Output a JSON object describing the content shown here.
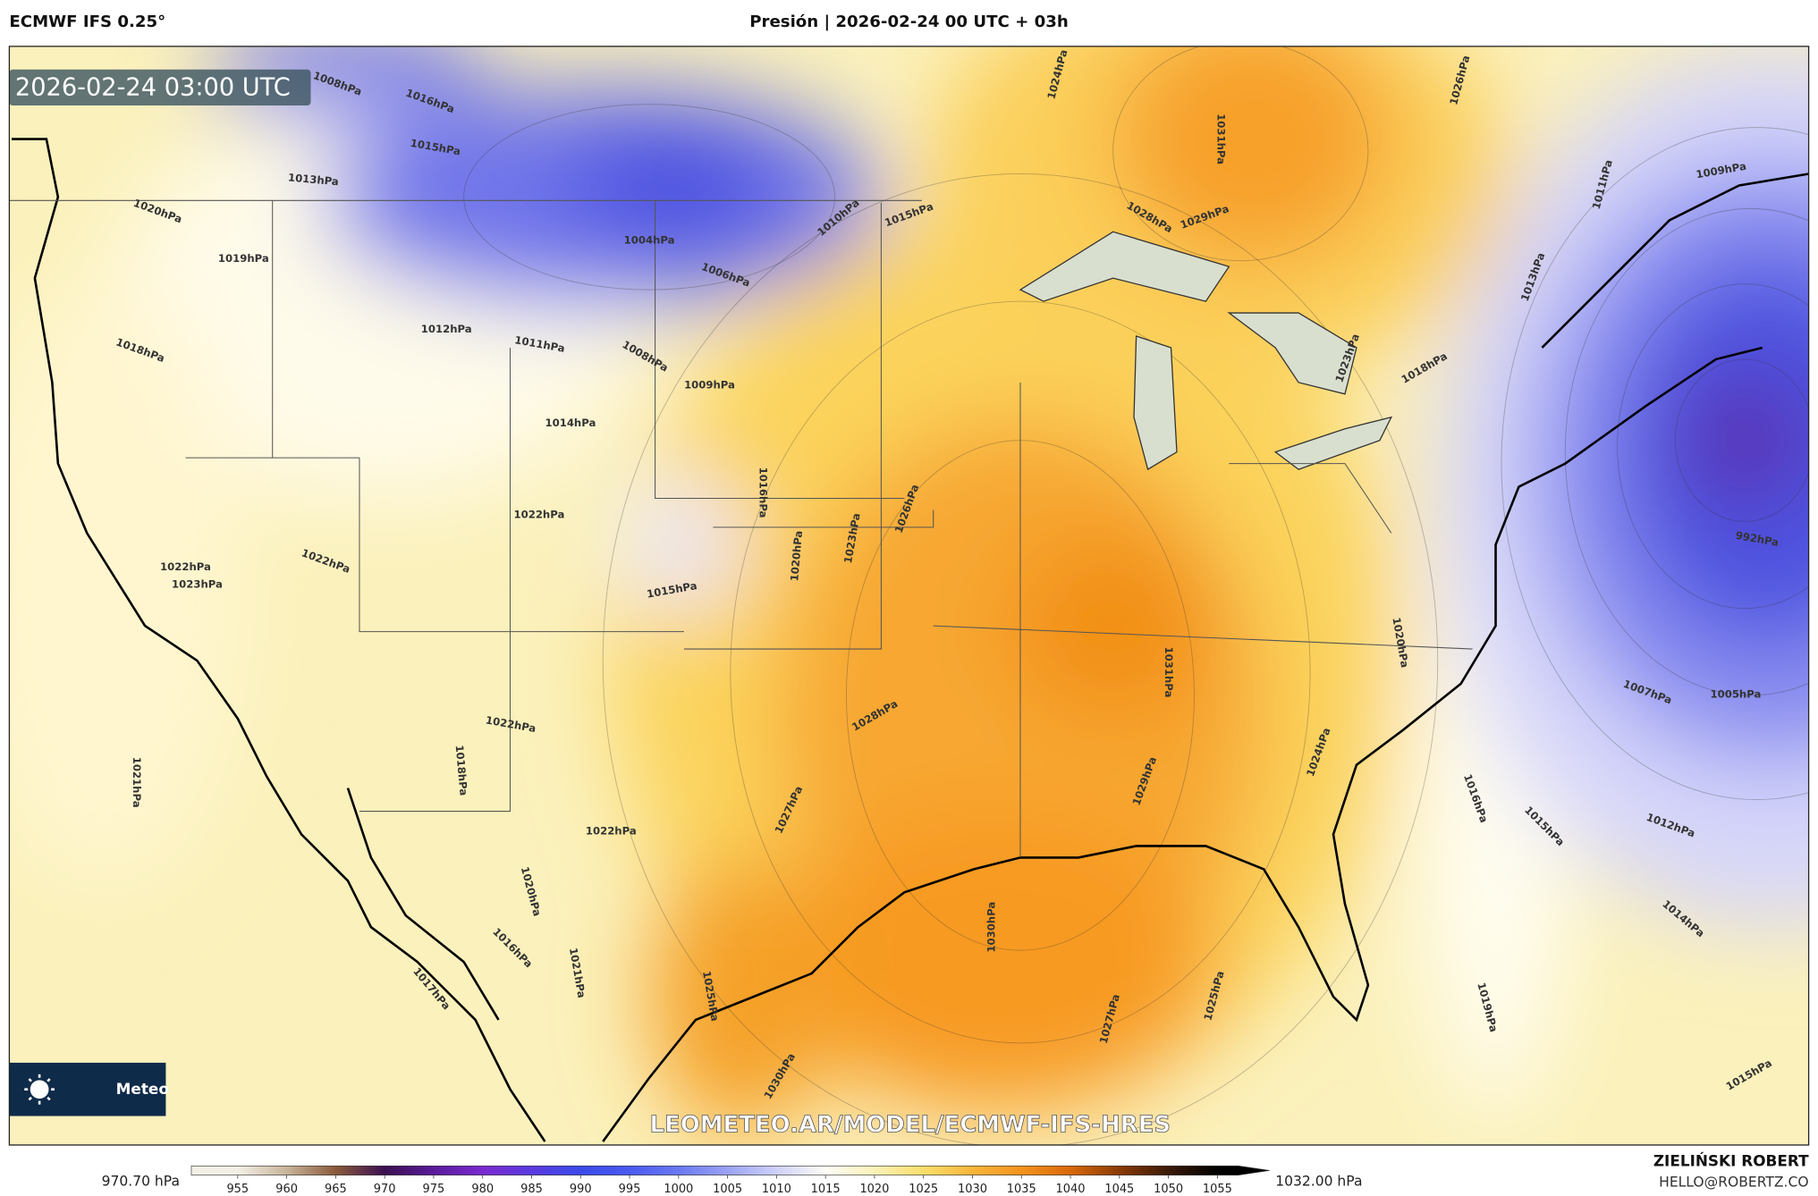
{
  "header": {
    "left": "ECMWF IFS 0.25°",
    "center": "Presión | 2026-02-24 00 UTC + 03h"
  },
  "map": {
    "timestamp": "2026-02-24 03:00 UTC",
    "watermark": "LEOMETEO.AR/MODEL/ECMWF-IFS-HRES",
    "logo_text": "Meteo",
    "isobar_labels": [
      "1016hPa",
      "1008hPa",
      "1015hPa",
      "1013hPa",
      "1020hPa",
      "1019hPa",
      "1018hPa",
      "1012hPa",
      "1011hPa",
      "1008hPa",
      "1009hPa",
      "1014hPa",
      "1004hPa",
      "1006hPa",
      "1010hPa",
      "1015hPa",
      "1024hPa",
      "1031hPa",
      "1029hPa",
      "1028hPa",
      "1026hPa",
      "1011hPa",
      "1009hPa",
      "1013hPa",
      "1018hPa",
      "1023hPa",
      "1016hPa",
      "1020hPa",
      "1023hPa",
      "1026hPa",
      "1022hPa",
      "1015hPa",
      "1022hPa",
      "1023hPa",
      "1022hPa",
      "1028hPa",
      "1031hPa",
      "1029hPa",
      "1024hPa",
      "1020hPa",
      "1022hPa",
      "1018hPa",
      "1021hPa",
      "1027hPa",
      "1022hPa",
      "1030hPa",
      "1027hPa",
      "1025hPa",
      "1016hPa",
      "1015hPa",
      "1012hPa",
      "1014hPa",
      "1007hPa",
      "1005hPa",
      "992hPa",
      "1019hPa",
      "1015hPa",
      "1020hPa",
      "1016hPa",
      "1021hPa",
      "1017hPa",
      "1025hPa",
      "1030hPa"
    ]
  },
  "colorbar": {
    "min_label": "970.70 hPa",
    "max_label": "1032.00 hPa",
    "ticks": [
      955,
      960,
      965,
      970,
      975,
      980,
      985,
      990,
      995,
      1000,
      1005,
      1010,
      1015,
      1020,
      1025,
      1030,
      1035,
      1040,
      1045,
      1050,
      1055
    ],
    "colors": [
      "#f3efe6",
      "#c8b49a",
      "#8a5a3a",
      "#3a1050",
      "#5a1a9a",
      "#7a2ad0",
      "#5a3ae0",
      "#3a4ae8",
      "#4a5af0",
      "#6a78f2",
      "#9aa2f4",
      "#cfd0f8",
      "#fdfcf6",
      "#fbf1b8",
      "#f9de6a",
      "#f8b53a",
      "#f4921c",
      "#d8680a",
      "#8a3a08",
      "#3a1a08",
      "#000000"
    ]
  },
  "footer": {
    "author": "ZIELIŃSKI ROBERT",
    "email": "HELLO@ROBERTZ.CO"
  }
}
